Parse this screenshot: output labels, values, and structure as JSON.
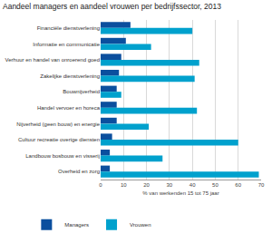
{
  "chart_data": {
    "type": "bar",
    "title": "Aandeel managers en aandeel vrouwen per bedrijfssector, 2013",
    "x_label": "% van werkenden 15 tot 75 jaar",
    "orientation": "horizontal",
    "categories": [
      "Financiële dienstverlening",
      "Informatie en communicatie",
      "Verhuur en handel van onroerend goed",
      "Zakelijke dienstverlening",
      "Bouwnijverheid",
      "Handel vervoer en horeca",
      "Nijverheid (geen bouw) en energie",
      "Cultuur recreatie overige diensten",
      "Landbouw bosbouw en visserij",
      "Overheid en zorg"
    ],
    "series": [
      {
        "name": "Managers",
        "color": "#0b4f9e",
        "values": [
          13,
          11,
          9,
          8,
          7,
          7,
          7,
          5,
          4,
          4
        ]
      },
      {
        "name": "Vrouwen",
        "color": "#00a1cd",
        "values": [
          40,
          22,
          43,
          41,
          9,
          42,
          21,
          60,
          27,
          69
        ]
      }
    ],
    "xlim": [
      0,
      70
    ],
    "xticks": [
      0,
      10,
      20,
      30,
      40,
      50,
      60,
      70
    ],
    "grid": true,
    "legend": "bottom"
  }
}
